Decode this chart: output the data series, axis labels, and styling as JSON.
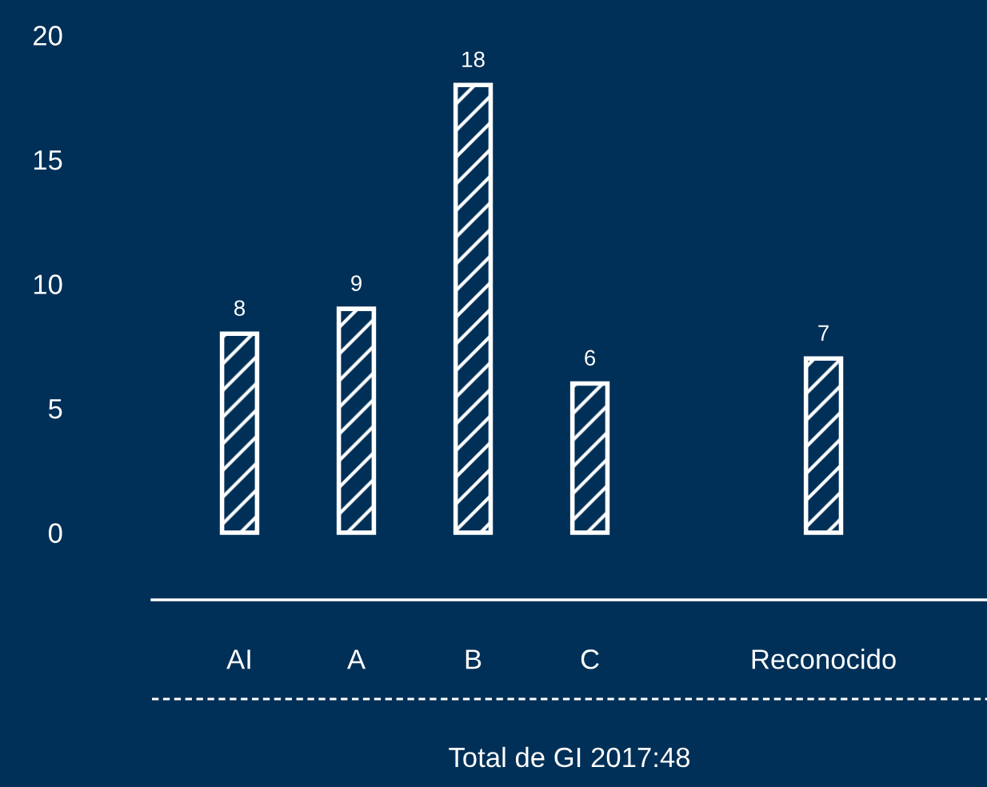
{
  "chart_data": {
    "type": "bar",
    "categories": [
      "AI",
      "A",
      "B",
      "C",
      null,
      "Reconocido"
    ],
    "values": [
      8,
      9,
      18,
      6,
      null,
      7
    ],
    "color": "#ffffff",
    "ylim": [
      -2.7,
      20
    ],
    "yticks": [
      0,
      5,
      10,
      15,
      20
    ],
    "grid": false,
    "data_labels": true,
    "annotations": [
      "Total de GI 2017:48"
    ]
  }
}
